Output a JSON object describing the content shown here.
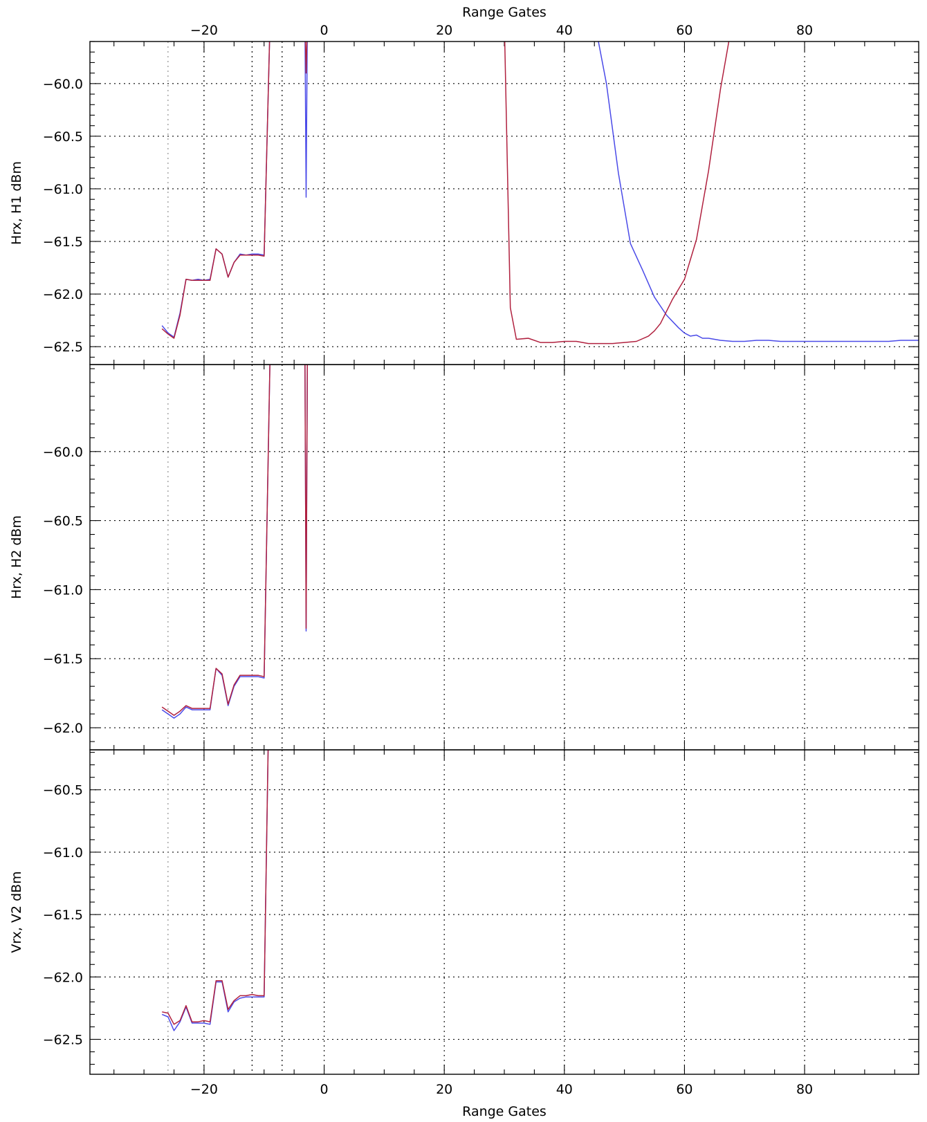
{
  "chart_data": {
    "type": "line",
    "top_xlabel": "Range Gates",
    "bottom_xlabel": "Range Gates",
    "xlim": [
      -39,
      99
    ],
    "xticks": [
      -20,
      0,
      20,
      40,
      60,
      80
    ],
    "x_minor_step": 5,
    "grid": true,
    "series_colors": [
      "#4a4ae8",
      "#b0203e"
    ],
    "vertical_markers": [
      {
        "x": -26,
        "color": "#909090"
      },
      {
        "x": -20,
        "color": "#000000"
      },
      {
        "x": -12,
        "color": "#000000"
      },
      {
        "x": -7,
        "color": "#000000"
      }
    ],
    "panels": [
      {
        "ylabel": "Hrx, H1 dBm",
        "ylim": [
          -62.67,
          -59.6
        ],
        "yticks": [
          -60.0,
          -60.5,
          -61.0,
          -61.5,
          -62.0,
          -62.5
        ],
        "y_minor_step": 0.1,
        "series": [
          {
            "x": [
              -27,
              -26,
              -25,
              -24,
              -23,
              -22,
              -21,
              -20,
              -19,
              -18,
              -17,
              -16,
              -15,
              -14,
              -13,
              -12,
              -11,
              -10,
              -9,
              -3.2,
              -3,
              -2.8,
              45,
              47,
              49,
              51,
              53,
              55,
              57,
              59,
              60,
              61,
              62,
              63,
              64,
              66,
              68,
              70,
              72,
              74,
              76,
              78,
              80,
              82,
              84,
              86,
              88,
              90,
              92,
              94,
              96,
              99
            ],
            "y": [
              -62.3,
              -62.37,
              -62.41,
              -62.18,
              -61.86,
              -61.87,
              -61.86,
              -61.87,
              -61.86,
              -61.57,
              -61.62,
              -61.84,
              -61.7,
              -61.62,
              -61.63,
              -61.62,
              -61.62,
              -61.63,
              -59.4,
              -59.4,
              -61.08,
              -59.4,
              -59.4,
              -60.0,
              -60.85,
              -61.52,
              -61.77,
              -62.03,
              -62.2,
              -62.32,
              -62.37,
              -62.4,
              -62.39,
              -62.42,
              -62.42,
              -62.44,
              -62.45,
              -62.45,
              -62.44,
              -62.44,
              -62.45,
              -62.45,
              -62.45,
              -62.45,
              -62.45,
              -62.45,
              -62.45,
              -62.45,
              -62.45,
              -62.45,
              -62.44,
              -62.44
            ]
          },
          {
            "x": [
              -27,
              -26,
              -25,
              -24,
              -23,
              -22,
              -21,
              -20,
              -19,
              -18,
              -17,
              -16,
              -15,
              -14,
              -13,
              -12,
              -11,
              -10,
              -9,
              -3.2,
              -3,
              -2.8,
              30,
              31,
              32,
              34,
              36,
              38,
              40,
              42,
              44,
              46,
              48,
              50,
              52,
              54,
              55,
              56,
              58,
              60,
              62,
              64,
              66,
              68,
              70
            ],
            "y": [
              -62.33,
              -62.38,
              -62.42,
              -62.2,
              -61.86,
              -61.87,
              -61.87,
              -61.87,
              -61.87,
              -61.57,
              -61.62,
              -61.84,
              -61.7,
              -61.63,
              -61.63,
              -61.63,
              -61.63,
              -61.64,
              -59.4,
              -59.4,
              -59.9,
              -59.4,
              -59.4,
              -62.13,
              -62.43,
              -62.42,
              -62.46,
              -62.46,
              -62.45,
              -62.45,
              -62.47,
              -62.47,
              -62.47,
              -62.46,
              -62.45,
              -62.4,
              -62.35,
              -62.28,
              -62.05,
              -61.86,
              -61.48,
              -60.83,
              -60.05,
              -59.4,
              -59.4
            ]
          }
        ]
      },
      {
        "ylabel": "Hrx, H2 dBm",
        "ylim": [
          -62.16,
          -59.37
        ],
        "yticks": [
          -60.0,
          -60.5,
          -61.0,
          -61.5,
          -62.0
        ],
        "y_minor_step": 0.1,
        "series": [
          {
            "x": [
              -27,
              -26,
              -25,
              -24,
              -23,
              -22,
              -21,
              -20,
              -19,
              -18,
              -17,
              -16,
              -15,
              -14,
              -13,
              -12,
              -11,
              -10,
              -9,
              -3.2,
              -3,
              -2.8
            ],
            "y": [
              -61.87,
              -61.9,
              -61.93,
              -61.9,
              -61.85,
              -61.87,
              -61.87,
              -61.87,
              -61.87,
              -61.57,
              -61.62,
              -61.84,
              -61.7,
              -61.63,
              -61.63,
              -61.63,
              -61.63,
              -61.64,
              -59.3,
              -59.3,
              -61.3,
              -59.3
            ]
          },
          {
            "x": [
              -27,
              -26,
              -25,
              -24,
              -23,
              -22,
              -21,
              -20,
              -19,
              -18,
              -17,
              -16,
              -15,
              -14,
              -13,
              -12,
              -11,
              -10,
              -9,
              -3.2,
              -3,
              -2.8
            ],
            "y": [
              -61.85,
              -61.88,
              -61.91,
              -61.88,
              -61.84,
              -61.86,
              -61.86,
              -61.86,
              -61.86,
              -61.57,
              -61.61,
              -61.83,
              -61.69,
              -61.62,
              -61.62,
              -61.62,
              -61.62,
              -61.63,
              -59.3,
              -59.3,
              -61.28,
              -59.3
            ]
          }
        ]
      },
      {
        "ylabel": "Vrx, V2 dBm",
        "ylim": [
          -62.78,
          -60.18
        ],
        "yticks": [
          -60.5,
          -61.0,
          -61.5,
          -62.0,
          -62.5
        ],
        "y_minor_step": 0.1,
        "series": [
          {
            "x": [
              -27,
              -26,
              -25,
              -24,
              -23,
              -22,
              -21,
              -20,
              -19,
              -18,
              -17,
              -16,
              -15,
              -14,
              -13,
              -12,
              -11,
              -10,
              -9.3
            ],
            "y": [
              -62.3,
              -62.32,
              -62.43,
              -62.36,
              -62.24,
              -62.37,
              -62.37,
              -62.37,
              -62.38,
              -62.04,
              -62.04,
              -62.28,
              -62.2,
              -62.17,
              -62.16,
              -62.16,
              -62.16,
              -62.16,
              -60.1
            ]
          },
          {
            "x": [
              -27,
              -26,
              -25,
              -24,
              -23,
              -22,
              -21,
              -20,
              -19,
              -18,
              -17,
              -16,
              -15,
              -14,
              -13,
              -12,
              -11,
              -10,
              -9.3
            ],
            "y": [
              -62.28,
              -62.29,
              -62.38,
              -62.35,
              -62.23,
              -62.36,
              -62.36,
              -62.35,
              -62.36,
              -62.03,
              -62.03,
              -62.26,
              -62.19,
              -62.15,
              -62.15,
              -62.14,
              -62.15,
              -62.15,
              -60.1
            ]
          }
        ]
      }
    ]
  }
}
